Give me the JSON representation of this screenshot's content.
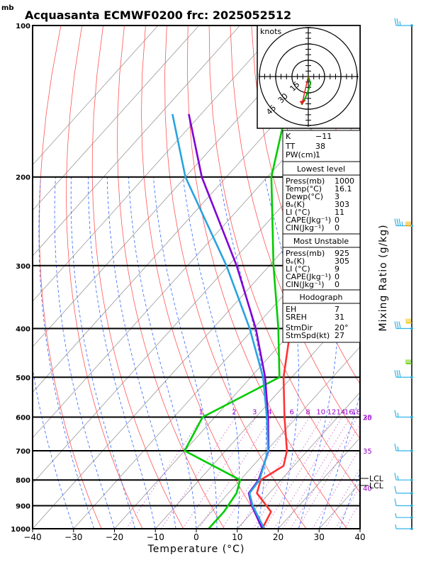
{
  "title": "Acquasanta ECMWF0200  frc: 2025052512",
  "y_unit": "mb",
  "x_axis_label": "Temperature (°C)",
  "right_axis_label": "Mixing Ratio (g/kg)",
  "hodograph": {
    "unit_label": "knots",
    "ring_labels": [
      "15",
      "30",
      "45"
    ],
    "ring_speeds": [
      15,
      30,
      45
    ]
  },
  "indices": [
    {
      "label": "K",
      "value": "−11"
    },
    {
      "label": "TT",
      "value": "38"
    },
    {
      "label": "PW(cm)",
      "value": "1"
    }
  ],
  "lowest_level": {
    "heading": "Lowest level",
    "rows": [
      {
        "label": "Press(mb)",
        "value": "1000"
      },
      {
        "label": "Temp(°C)",
        "value": "16.1"
      },
      {
        "label": "Dewp(°C)",
        "value": "3"
      },
      {
        "label": "θₑ(K)",
        "value": "303"
      },
      {
        "label": "LI (°C)",
        "value": "11"
      },
      {
        "label": "CAPE(Jkg⁻¹)",
        "value": "0"
      },
      {
        "label": "CIN(Jkg⁻¹)",
        "value": "0"
      }
    ]
  },
  "most_unstable": {
    "heading": "Most Unstable",
    "rows": [
      {
        "label": "Press(mb)",
        "value": "925"
      },
      {
        "label": "θₑ(K)",
        "value": "305"
      },
      {
        "label": "LI (°C)",
        "value": "9"
      },
      {
        "label": "CAPE(Jkg⁻¹)",
        "value": "0"
      },
      {
        "label": "CIN(Jkg⁻¹)",
        "value": "0"
      }
    ]
  },
  "hodograph_table": {
    "heading": "Hodograph",
    "rows": [
      {
        "label": "EH",
        "value": "7"
      },
      {
        "label": "SREH",
        "value": "31"
      },
      {
        "label": "StmDir",
        "value": "20°"
      },
      {
        "label": "StmSpd(kt)",
        "value": "27"
      }
    ]
  },
  "lcl_labels": [
    "LCL",
    "LCL"
  ],
  "colors": {
    "temperature": "#ff3333",
    "dewpoint": "#00cc00",
    "parcel": "#7f00d4",
    "virtual": "#29a3e0",
    "isotherm": "#999999",
    "dry_adiabat": "#ff5555",
    "moist_adiabat": "#3366ff",
    "mixing_line": "#cc66cc",
    "wind_barb": "#33b5e5"
  },
  "chart_data": {
    "type": "skew-t",
    "pressure_levels_mb": [
      1000,
      900,
      800,
      700,
      600,
      500,
      400,
      300,
      200,
      100
    ],
    "x_ticks_c": [
      -40,
      -30,
      -20,
      -10,
      0,
      10,
      20,
      30,
      40
    ],
    "xlim_c": [
      -40,
      40
    ],
    "ylim_mb": [
      1000,
      100
    ],
    "y_scale": "log",
    "mixing_ratio_labels_gkg": [
      1,
      2,
      3,
      4,
      6,
      8,
      10,
      12,
      14,
      16,
      18,
      20,
      25,
      30,
      35,
      40
    ],
    "series": [
      {
        "name": "temperature",
        "points": [
          [
            1000,
            16.1
          ],
          [
            925,
            14.5
          ],
          [
            850,
            7.0
          ],
          [
            800,
            5.0
          ],
          [
            750,
            7.5
          ],
          [
            700,
            5.0
          ],
          [
            600,
            -3.0
          ],
          [
            500,
            -12.0
          ],
          [
            400,
            -21.0
          ],
          [
            300,
            -33.0
          ],
          [
            250,
            -44.0
          ],
          [
            200,
            -44.0
          ],
          [
            150,
            -48.0
          ],
          [
            100,
            -53.0
          ]
        ]
      },
      {
        "name": "dewpoint",
        "points": [
          [
            1000,
            3.0
          ],
          [
            925,
            3.0
          ],
          [
            850,
            2.0
          ],
          [
            800,
            0.0
          ],
          [
            700,
            -20.0
          ],
          [
            600,
            -23.0
          ],
          [
            500,
            -13.0
          ],
          [
            400,
            -24.0
          ],
          [
            300,
            -39.0
          ],
          [
            200,
            -59.0
          ],
          [
            100,
            -84.0
          ]
        ]
      },
      {
        "name": "parcel",
        "points": [
          [
            1000,
            16.1
          ],
          [
            900,
            8.5
          ],
          [
            850,
            5.0
          ],
          [
            800,
            4.5
          ],
          [
            700,
            0.5
          ],
          [
            600,
            -7.0
          ],
          [
            500,
            -16.5
          ],
          [
            400,
            -29.5
          ],
          [
            300,
            -48.0
          ],
          [
            200,
            -76.0
          ],
          [
            150,
            -93.0
          ]
        ]
      },
      {
        "name": "virtual",
        "points": [
          [
            1000,
            16.6
          ],
          [
            900,
            8.7
          ],
          [
            850,
            5.2
          ],
          [
            800,
            4.7
          ],
          [
            700,
            0.4
          ],
          [
            600,
            -7.3
          ],
          [
            500,
            -17.0
          ],
          [
            400,
            -31.0
          ],
          [
            300,
            -50.5
          ],
          [
            200,
            -80.0
          ],
          [
            150,
            -97.0
          ]
        ]
      }
    ],
    "lcl_pressure_mb": [
      815,
      830
    ],
    "wind_barbs": [
      {
        "p": 1000,
        "dir": 200,
        "spd": 5
      },
      {
        "p": 950,
        "dir": 210,
        "spd": 5
      },
      {
        "p": 900,
        "dir": 220,
        "spd": 10
      },
      {
        "p": 850,
        "dir": 200,
        "spd": 10
      },
      {
        "p": 800,
        "dir": 200,
        "spd": 15
      },
      {
        "p": 700,
        "dir": 210,
        "spd": 15
      },
      {
        "p": 600,
        "dir": 215,
        "spd": 15
      },
      {
        "p": 500,
        "dir": 220,
        "spd": 30
      },
      {
        "p": 400,
        "dir": 220,
        "spd": 30
      },
      {
        "p": 250,
        "dir": 230,
        "spd": 35
      },
      {
        "p": 100,
        "dir": 250,
        "spd": 25
      }
    ],
    "hodograph_points": [
      [
        0,
        0
      ],
      [
        2,
        -6
      ],
      [
        1,
        -10
      ],
      [
        -2,
        -18
      ],
      [
        -6,
        -26
      ]
    ]
  }
}
